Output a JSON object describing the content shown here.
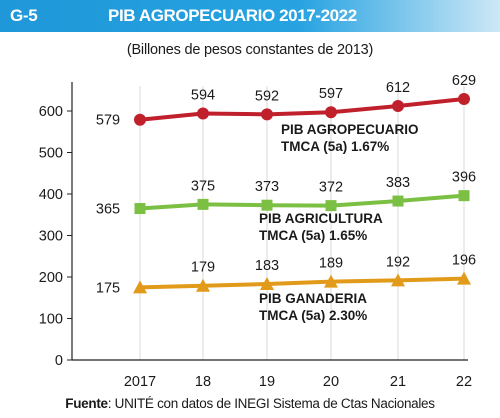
{
  "figure": {
    "id": "G-5",
    "title": "PIB AGROPECUARIO 2017-2022",
    "subtitle": "(Billones de pesos constantes de 2013)",
    "source_label": "Fuente",
    "source_text": ": UNITÉ con datos de INEGI Sistema de Ctas Nacionales"
  },
  "colors": {
    "banner": "#1f97d8",
    "agropecuario": "#c0202b",
    "agricultura": "#7cc043",
    "ganaderia": "#e29a1a"
  },
  "chart_data": {
    "type": "line",
    "x": [
      "2017",
      "18",
      "19",
      "20",
      "21",
      "22"
    ],
    "ylim": [
      0,
      600
    ],
    "yticks": [
      0,
      100,
      200,
      300,
      400,
      500,
      600
    ],
    "grid": "vertical",
    "series": [
      {
        "key": "agropecuario",
        "name": "PIB AGROPECUARIO",
        "note": "TMCA (5a) 1.67%",
        "marker": "circle",
        "color": "#c0202b",
        "values": [
          579,
          594,
          592,
          597,
          612,
          629
        ]
      },
      {
        "key": "agricultura",
        "name": "PIB AGRICULTURA",
        "note": "TMCA (5a) 1.65%",
        "marker": "square",
        "color": "#7cc043",
        "values": [
          365,
          375,
          373,
          372,
          383,
          396
        ]
      },
      {
        "key": "ganaderia",
        "name": "PIB GANADERIA",
        "note": "TMCA (5a) 2.30%",
        "marker": "triangle",
        "color": "#e29a1a",
        "values": [
          175,
          179,
          183,
          189,
          192,
          196
        ]
      }
    ]
  }
}
